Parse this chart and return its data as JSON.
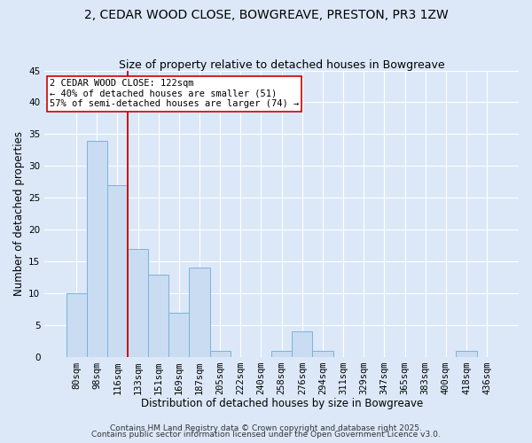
{
  "title": "2, CEDAR WOOD CLOSE, BOWGREAVE, PRESTON, PR3 1ZW",
  "subtitle": "Size of property relative to detached houses in Bowgreave",
  "xlabel": "Distribution of detached houses by size in Bowgreave",
  "ylabel": "Number of detached properties",
  "bin_labels": [
    "80sqm",
    "98sqm",
    "116sqm",
    "133sqm",
    "151sqm",
    "169sqm",
    "187sqm",
    "205sqm",
    "222sqm",
    "240sqm",
    "258sqm",
    "276sqm",
    "294sqm",
    "311sqm",
    "329sqm",
    "347sqm",
    "365sqm",
    "383sqm",
    "400sqm",
    "418sqm",
    "436sqm"
  ],
  "bar_values": [
    10,
    34,
    27,
    17,
    13,
    7,
    14,
    1,
    0,
    0,
    1,
    4,
    1,
    0,
    0,
    0,
    0,
    0,
    0,
    1,
    0
  ],
  "bar_color": "#c9dcf2",
  "bar_edge_color": "#7ab3d8",
  "bar_width": 1.0,
  "vline_x_index": 2,
  "vline_color": "#cc0000",
  "annotation_text": "2 CEDAR WOOD CLOSE: 122sqm\n← 40% of detached houses are smaller (51)\n57% of semi-detached houses are larger (74) →",
  "ylim": [
    0,
    45
  ],
  "yticks": [
    0,
    5,
    10,
    15,
    20,
    25,
    30,
    35,
    40,
    45
  ],
  "bg_color": "#dce8f8",
  "plot_bg_color": "#dce8f8",
  "grid_color": "#ffffff",
  "footer_line1": "Contains HM Land Registry data © Crown copyright and database right 2025.",
  "footer_line2": "Contains public sector information licensed under the Open Government Licence v3.0.",
  "title_fontsize": 10,
  "subtitle_fontsize": 9,
  "axis_label_fontsize": 8.5,
  "tick_fontsize": 7.5,
  "annotation_fontsize": 7.5,
  "footer_fontsize": 6.5
}
